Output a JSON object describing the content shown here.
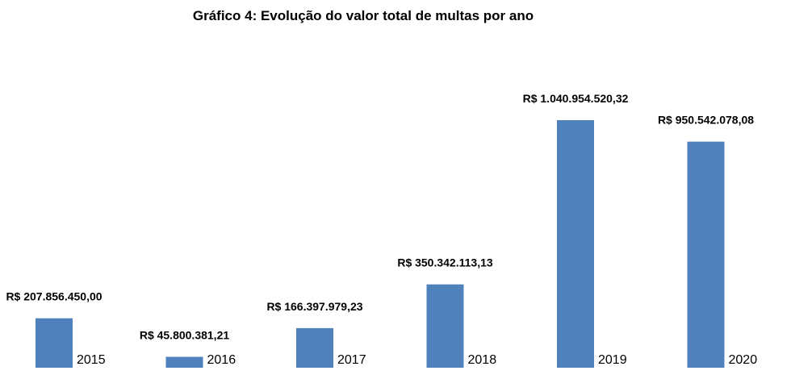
{
  "chart_data": {
    "type": "bar",
    "title": "Gráfico 4: Evolução do valor total de multas por ano",
    "categories": [
      "2015",
      "2016",
      "2017",
      "2018",
      "2019",
      "2020"
    ],
    "values": [
      207856450.0,
      45800381.21,
      166397979.23,
      350342113.13,
      1040954520.32,
      950542078.08
    ],
    "value_labels": [
      "R$ 207.856.450,00",
      "R$ 45.800.381,21",
      "R$ 166.397.979,23",
      "R$ 350.342.113,13",
      "R$ 1.040.954.520,32",
      "R$ 950.542.078,08"
    ],
    "xlabel": "",
    "ylabel": "",
    "ylim": [
      0,
      1100000000
    ],
    "grid": false,
    "legend": "none",
    "bar_color": "#4F81BD"
  }
}
